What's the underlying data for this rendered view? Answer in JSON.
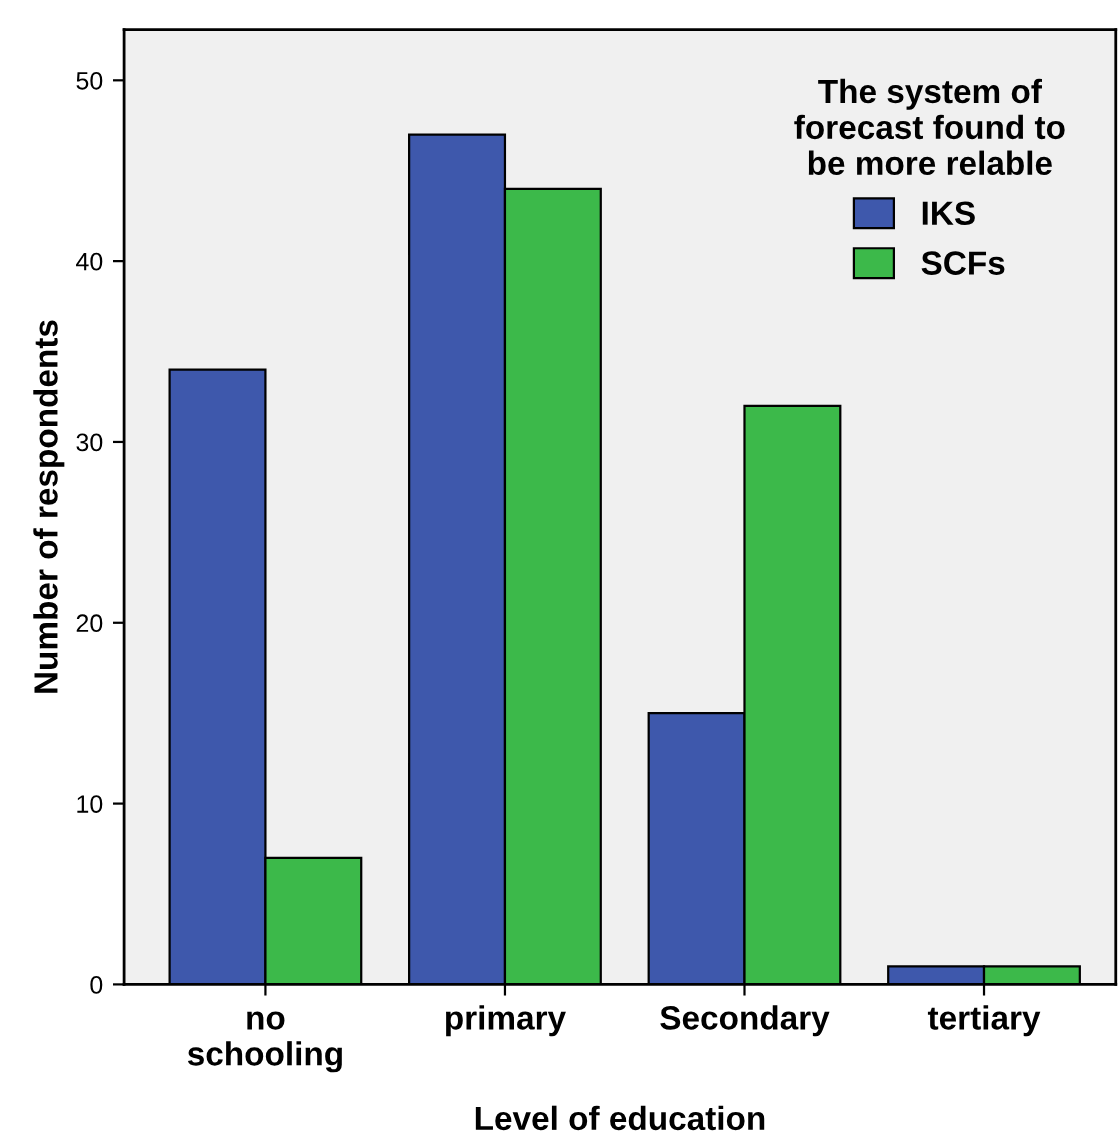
{
  "chart_data": {
    "type": "bar",
    "xlabel": "Level of education",
    "ylabel": "Number of respondents",
    "legend_title": "The system of\nforecast found to\nbe more relable",
    "categories": [
      "no\nschooling",
      "primary",
      "Secondary",
      "tertiary"
    ],
    "series": [
      {
        "name": "IKS",
        "color": "#3e58ac",
        "values": [
          34,
          47,
          15,
          1
        ]
      },
      {
        "name": "SCFs",
        "color": "#3cb94a",
        "values": [
          7,
          44,
          32,
          1
        ]
      }
    ],
    "ylim": [
      0,
      52.8
    ],
    "yticks": [
      0,
      10,
      20,
      30,
      40,
      50
    ],
    "grid": false,
    "legend": "top right"
  }
}
